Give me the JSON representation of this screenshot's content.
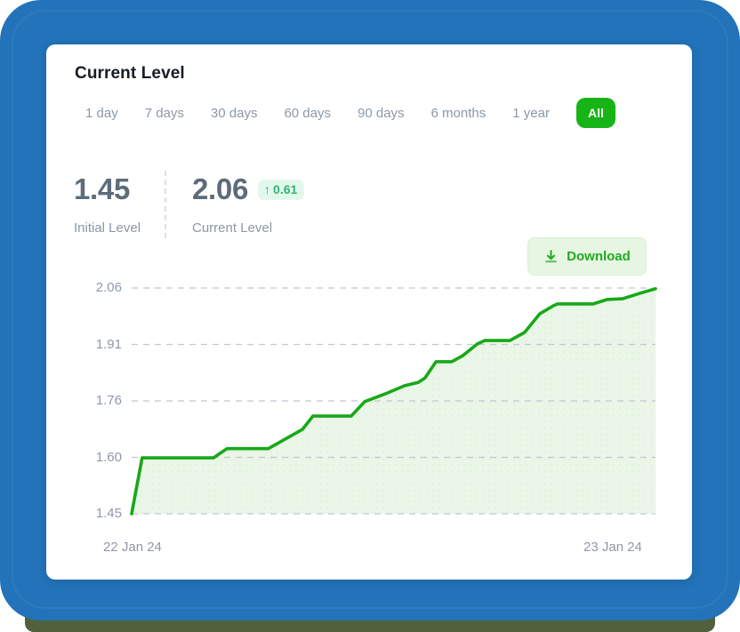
{
  "card": {
    "title": "Current Level",
    "tabs": {
      "items": [
        "1 day",
        "7 days",
        "30 days",
        "60 days",
        "90 days",
        "6 months",
        "1 year",
        "All"
      ],
      "active_index": 7
    },
    "stats": {
      "initial": {
        "value": "1.45",
        "label": "Initial Level"
      },
      "current": {
        "value": "2.06",
        "label": "Current Level",
        "change_arrow": "↑",
        "change_value": "0.61"
      }
    },
    "download_label": "Download"
  },
  "chart_data": {
    "type": "area",
    "title": "Current Level over time",
    "x_range": [
      "22 Jan 24",
      "23 Jan 24"
    ],
    "y_ticks": [
      "2.06",
      "1.91",
      "1.76",
      "1.60",
      "1.45"
    ],
    "ylim": [
      1.45,
      2.06
    ],
    "grid": "horizontal-dashed",
    "legend": "none",
    "initial_value": 1.45,
    "current_value": 2.06,
    "change": 0.61,
    "points": [
      {
        "t": 0.0,
        "v": 1.45
      },
      {
        "t": 0.02,
        "v": 1.601
      },
      {
        "t": 0.156,
        "v": 1.601
      },
      {
        "t": 0.182,
        "v": 1.626
      },
      {
        "t": 0.261,
        "v": 1.626
      },
      {
        "t": 0.326,
        "v": 1.678
      },
      {
        "t": 0.346,
        "v": 1.714
      },
      {
        "t": 0.419,
        "v": 1.714
      },
      {
        "t": 0.445,
        "v": 1.753
      },
      {
        "t": 0.484,
        "v": 1.774
      },
      {
        "t": 0.521,
        "v": 1.796
      },
      {
        "t": 0.547,
        "v": 1.805
      },
      {
        "t": 0.56,
        "v": 1.817
      },
      {
        "t": 0.581,
        "v": 1.861
      },
      {
        "t": 0.611,
        "v": 1.861
      },
      {
        "t": 0.632,
        "v": 1.877
      },
      {
        "t": 0.66,
        "v": 1.909
      },
      {
        "t": 0.674,
        "v": 1.918
      },
      {
        "t": 0.722,
        "v": 1.918
      },
      {
        "t": 0.75,
        "v": 1.94
      },
      {
        "t": 0.779,
        "v": 1.99
      },
      {
        "t": 0.805,
        "v": 2.012
      },
      {
        "t": 0.813,
        "v": 2.017
      },
      {
        "t": 0.881,
        "v": 2.017
      },
      {
        "t": 0.908,
        "v": 2.029
      },
      {
        "t": 0.937,
        "v": 2.031
      },
      {
        "t": 0.971,
        "v": 2.046
      },
      {
        "t": 1.0,
        "v": 2.058
      }
    ]
  },
  "colors": {
    "panel_blue": "#2273b9",
    "active_tab_green": "#16b416",
    "line_green": "#18a818",
    "area_fill": "#eaf6e7",
    "gridline": "#c0c8d1",
    "badge_bg": "#e3f8ec",
    "badge_text": "#2db473",
    "download_bg": "#e7f6e2",
    "download_text": "#23a923",
    "bottom_strip": "#51613c"
  }
}
